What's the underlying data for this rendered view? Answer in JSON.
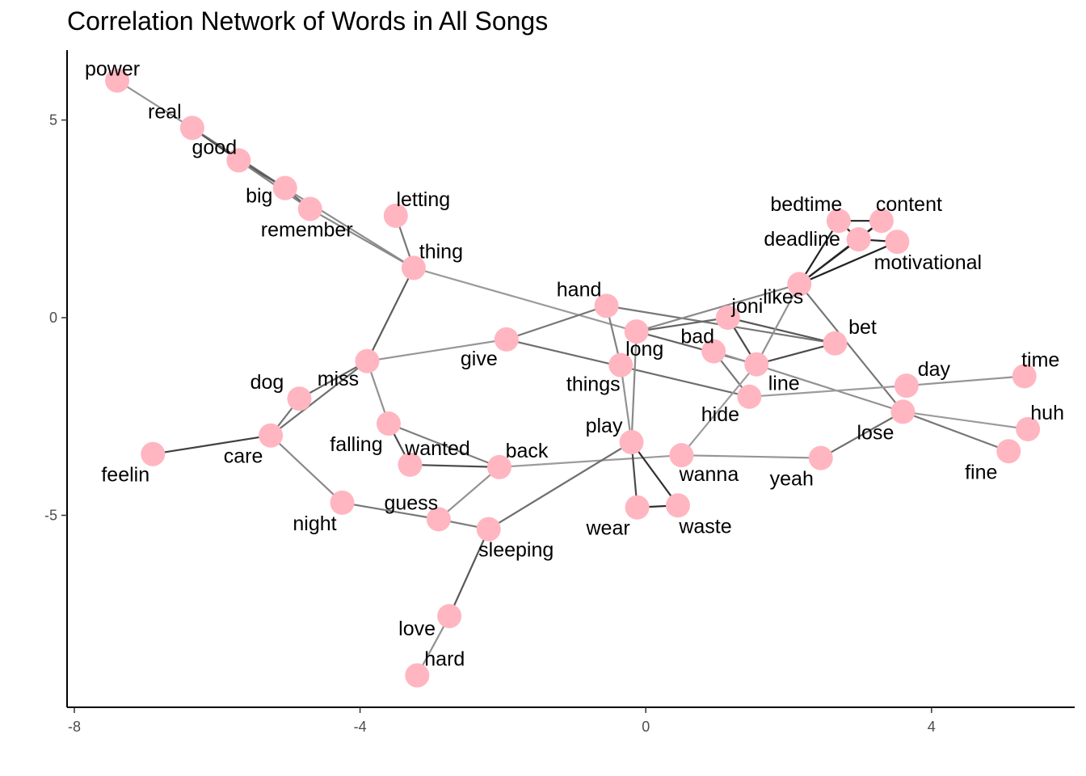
{
  "title": "Correlation Network of Words in All Songs",
  "colors": {
    "node": "#ffb6c1",
    "axis": "#000000",
    "tick_text": "#4d4d4d"
  },
  "chart_data": {
    "type": "network",
    "title": "Correlation Network of Words in All Songs",
    "xlim": [
      -8.1,
      6.0
    ],
    "ylim": [
      -9.8,
      6.7
    ],
    "x_ticks": [
      -8,
      -4,
      0,
      4
    ],
    "y_ticks": [
      -5,
      0,
      5
    ],
    "nodes": [
      {
        "id": "power",
        "x": -7.4,
        "y": 6.0
      },
      {
        "id": "real",
        "x": -6.35,
        "y": 4.8
      },
      {
        "id": "good",
        "x": -5.7,
        "y": 3.98
      },
      {
        "id": "big",
        "x": -5.05,
        "y": 3.28
      },
      {
        "id": "remember",
        "x": -4.7,
        "y": 2.75
      },
      {
        "id": "letting",
        "x": -3.5,
        "y": 2.58
      },
      {
        "id": "thing",
        "x": -3.25,
        "y": 1.26
      },
      {
        "id": "hand",
        "x": -0.55,
        "y": 0.3
      },
      {
        "id": "joni",
        "x": 1.15,
        "y": 0.0
      },
      {
        "id": "likes",
        "x": 2.15,
        "y": 0.85
      },
      {
        "id": "bedtime",
        "x": 2.7,
        "y": 2.45
      },
      {
        "id": "content",
        "x": 3.3,
        "y": 2.45
      },
      {
        "id": "deadline",
        "x": 2.98,
        "y": 1.98
      },
      {
        "id": "motivational",
        "x": 3.52,
        "y": 1.92
      },
      {
        "id": "bet",
        "x": 2.65,
        "y": -0.65
      },
      {
        "id": "bad",
        "x": 0.95,
        "y": -0.85
      },
      {
        "id": "long",
        "x": -0.13,
        "y": -0.35
      },
      {
        "id": "give",
        "x": -1.95,
        "y": -0.55
      },
      {
        "id": "miss",
        "x": -3.9,
        "y": -1.1
      },
      {
        "id": "things",
        "x": -0.35,
        "y": -1.2
      },
      {
        "id": "line",
        "x": 1.55,
        "y": -1.18
      },
      {
        "id": "hide",
        "x": 1.45,
        "y": -2.0
      },
      {
        "id": "day",
        "x": 3.65,
        "y": -1.72
      },
      {
        "id": "time",
        "x": 5.3,
        "y": -1.48
      },
      {
        "id": "lose",
        "x": 3.6,
        "y": -2.38
      },
      {
        "id": "huh",
        "x": 5.35,
        "y": -2.82
      },
      {
        "id": "fine",
        "x": 5.08,
        "y": -3.38
      },
      {
        "id": "dog",
        "x": -4.85,
        "y": -2.05
      },
      {
        "id": "care",
        "x": -5.25,
        "y": -2.98
      },
      {
        "id": "feelin",
        "x": -6.9,
        "y": -3.45
      },
      {
        "id": "falling",
        "x": -3.6,
        "y": -2.68
      },
      {
        "id": "wanted",
        "x": -3.3,
        "y": -3.72
      },
      {
        "id": "back",
        "x": -2.05,
        "y": -3.78
      },
      {
        "id": "play",
        "x": -0.2,
        "y": -3.15
      },
      {
        "id": "wanna",
        "x": 0.5,
        "y": -3.48
      },
      {
        "id": "yeah",
        "x": 2.45,
        "y": -3.55
      },
      {
        "id": "night",
        "x": -4.25,
        "y": -4.68
      },
      {
        "id": "guess",
        "x": -2.9,
        "y": -5.1
      },
      {
        "id": "sleeping",
        "x": -2.2,
        "y": -5.35
      },
      {
        "id": "wear",
        "x": -0.12,
        "y": -4.8
      },
      {
        "id": "waste",
        "x": 0.45,
        "y": -4.75
      },
      {
        "id": "love",
        "x": -2.75,
        "y": -7.55
      },
      {
        "id": "hard",
        "x": -3.2,
        "y": -9.05
      }
    ],
    "edges": [
      {
        "from": "power",
        "to": "real",
        "strength": 0.28
      },
      {
        "from": "real",
        "to": "good",
        "strength": 0.78
      },
      {
        "from": "real",
        "to": "big",
        "strength": 0.55
      },
      {
        "from": "good",
        "to": "big",
        "strength": 0.6
      },
      {
        "from": "good",
        "to": "remember",
        "strength": 0.4
      },
      {
        "from": "big",
        "to": "remember",
        "strength": 0.5
      },
      {
        "from": "big",
        "to": "thing",
        "strength": 0.32
      },
      {
        "from": "remember",
        "to": "thing",
        "strength": 0.35
      },
      {
        "from": "letting",
        "to": "thing",
        "strength": 0.45
      },
      {
        "from": "thing",
        "to": "long",
        "strength": 0.25
      },
      {
        "from": "thing",
        "to": "miss",
        "strength": 0.6
      },
      {
        "from": "miss",
        "to": "dog",
        "strength": 0.55
      },
      {
        "from": "miss",
        "to": "care",
        "strength": 0.5
      },
      {
        "from": "miss",
        "to": "falling",
        "strength": 0.3
      },
      {
        "from": "miss",
        "to": "give",
        "strength": 0.28
      },
      {
        "from": "dog",
        "to": "care",
        "strength": 0.45
      },
      {
        "from": "care",
        "to": "feelin",
        "strength": 0.75
      },
      {
        "from": "care",
        "to": "night",
        "strength": 0.35
      },
      {
        "from": "falling",
        "to": "wanted",
        "strength": 0.7
      },
      {
        "from": "falling",
        "to": "back",
        "strength": 0.4
      },
      {
        "from": "wanted",
        "to": "back",
        "strength": 0.7
      },
      {
        "from": "back",
        "to": "guess",
        "strength": 0.3
      },
      {
        "from": "back",
        "to": "wanna",
        "strength": 0.25
      },
      {
        "from": "night",
        "to": "guess",
        "strength": 0.45
      },
      {
        "from": "guess",
        "to": "sleeping",
        "strength": 0.4
      },
      {
        "from": "sleeping",
        "to": "love",
        "strength": 0.62
      },
      {
        "from": "sleeping",
        "to": "play",
        "strength": 0.5
      },
      {
        "from": "love",
        "to": "hard",
        "strength": 0.3
      },
      {
        "from": "give",
        "to": "hand",
        "strength": 0.45
      },
      {
        "from": "give",
        "to": "hide",
        "strength": 0.5
      },
      {
        "from": "hand",
        "to": "bet",
        "strength": 0.45
      },
      {
        "from": "hand",
        "to": "things",
        "strength": 0.4
      },
      {
        "from": "things",
        "to": "play",
        "strength": 0.3
      },
      {
        "from": "long",
        "to": "likes",
        "strength": 0.35
      },
      {
        "from": "long",
        "to": "line",
        "strength": 0.55
      },
      {
        "from": "long",
        "to": "joni",
        "strength": 0.55
      },
      {
        "from": "joni",
        "to": "bet",
        "strength": 0.62
      },
      {
        "from": "joni",
        "to": "line",
        "strength": 0.7
      },
      {
        "from": "bad",
        "to": "hide",
        "strength": 0.45
      },
      {
        "from": "bad",
        "to": "lose",
        "strength": 0.3
      },
      {
        "from": "line",
        "to": "bet",
        "strength": 0.7
      },
      {
        "from": "line",
        "to": "likes",
        "strength": 0.3
      },
      {
        "from": "likes",
        "to": "bedtime",
        "strength": 0.92
      },
      {
        "from": "likes",
        "to": "deadline",
        "strength": 0.92
      },
      {
        "from": "likes",
        "to": "motivational",
        "strength": 0.92
      },
      {
        "from": "likes",
        "to": "content",
        "strength": 0.9
      },
      {
        "from": "likes",
        "to": "lose",
        "strength": 0.45
      },
      {
        "from": "bedtime",
        "to": "content",
        "strength": 0.92
      },
      {
        "from": "bedtime",
        "to": "deadline",
        "strength": 0.92
      },
      {
        "from": "deadline",
        "to": "motivational",
        "strength": 0.92
      },
      {
        "from": "content",
        "to": "deadline",
        "strength": 0.92
      },
      {
        "from": "hide",
        "to": "day",
        "strength": 0.25
      },
      {
        "from": "day",
        "to": "time",
        "strength": 0.28
      },
      {
        "from": "lose",
        "to": "huh",
        "strength": 0.25
      },
      {
        "from": "lose",
        "to": "fine",
        "strength": 0.45
      },
      {
        "from": "lose",
        "to": "yeah",
        "strength": 0.5
      },
      {
        "from": "yeah",
        "to": "wanna",
        "strength": 0.28
      },
      {
        "from": "wanna",
        "to": "line",
        "strength": 0.25
      },
      {
        "from": "play",
        "to": "wear",
        "strength": 0.7
      },
      {
        "from": "play",
        "to": "waste",
        "strength": 0.85
      },
      {
        "from": "play",
        "to": "long",
        "strength": 0.35
      },
      {
        "from": "wear",
        "to": "waste",
        "strength": 0.85
      }
    ]
  }
}
